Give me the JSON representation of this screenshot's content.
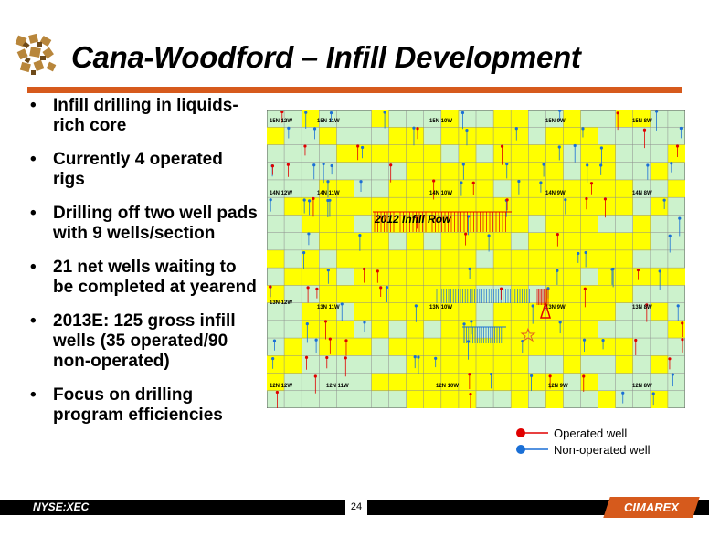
{
  "slide": {
    "title": "Cana-Woodford – Infill Development",
    "bullet_glyph": "•",
    "bullets": [
      "Infill drilling in liquids-rich core",
      "Currently 4 operated rigs",
      "Drilling off two well pads with 9 wells/section",
      "21 net wells waiting to be completed at yearend",
      "2013E: 125 gross infill wells  (35 operated/90 non-operated)",
      "Focus on drilling program efficiencies"
    ]
  },
  "map": {
    "annotation": "2012 Infill Row",
    "township_labels": [
      "15N 12W",
      "15N 11W",
      "15N 10W",
      "15N 9W",
      "15N 8W",
      "14N 12W",
      "14N 11W",
      "14N 10W",
      "14N 9W",
      "14N 8W",
      "13N 12W",
      "13N 11W",
      "13N 10W",
      "13N 9W",
      "13N 8W",
      "12N 12W",
      "12N 11W",
      "12N 10W",
      "12N 9W",
      "12N 8W"
    ],
    "colors": {
      "core": "#ffff00",
      "outer": "#ccf2cc",
      "operated": "#e00000",
      "non_operated": "#1a6fd6",
      "grid": "#8c8c8c",
      "marker": "#e06020"
    }
  },
  "legend": {
    "operated": "Operated well",
    "non_operated": "Non-operated well"
  },
  "footer": {
    "ticker": "NYSE:XEC",
    "page": "24",
    "brand": "CIMAREX"
  },
  "colors": {
    "accent": "#d65a1c"
  }
}
